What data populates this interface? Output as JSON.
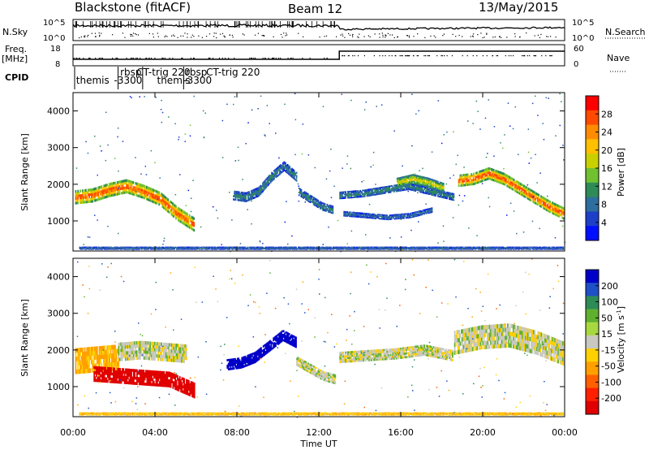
{
  "header": {
    "station": "Blackstone (fitACF)",
    "beam": "Beam 12",
    "date": "13/May/2015"
  },
  "top_panels": {
    "nsky_label": "N.Sky",
    "nsearch_label": "N.Search",
    "nsky_ticks": [
      "10^5",
      "10^0"
    ],
    "nsearch_ticks": [
      "10^5",
      "10^0"
    ],
    "freq_label": "Freq.",
    "freq_unit": "[MHz]",
    "freq_ticks": [
      "18",
      "8"
    ],
    "nave_label": "Nave",
    "nave_ticks": [
      "60",
      "0"
    ],
    "cpid_label": "CPID",
    "cpid_entries": [
      {
        "label": "themis",
        "start": 0.15
      },
      {
        "label": "rbsp",
        "start": 2.3
      },
      {
        "label": "-3300",
        "start": 2.0
      },
      {
        "label": "CT-trig 220",
        "start": 3.1
      },
      {
        "label": "themis",
        "start": 4.1
      },
      {
        "label": "-3300",
        "start": 5.4
      },
      {
        "label": "rbsp",
        "start": 5.5
      },
      {
        "label": "CT-trig 220",
        "start": 6.5
      }
    ],
    "cpid_boundaries": [
      2.2,
      3.4,
      5.4
    ]
  },
  "colorbars": {
    "power": {
      "label": "Power [dB]",
      "ticks": [
        "28",
        "24",
        "20",
        "16",
        "12",
        "8",
        "4"
      ],
      "colors": [
        "#ff0000",
        "#ff4a00",
        "#ff8c00",
        "#ffc000",
        "#c8d000",
        "#70c030",
        "#2e8b57",
        "#2e6e9e",
        "#1e40c8",
        "#0010ff"
      ]
    },
    "velocity": {
      "label": "Velocity [m s",
      "label_sup": "-1",
      "label_end": "]",
      "ticks": [
        "200",
        "100",
        "50",
        "15",
        "-15",
        "-50",
        "-100",
        "-200"
      ],
      "colors": [
        "#0000c8",
        "#1e50c8",
        "#2e8b57",
        "#60b030",
        "#a8d840",
        "#c8c8c0",
        "#ffd000",
        "#ffa000",
        "#ff6000",
        "#ff2000",
        "#e00000"
      ]
    }
  },
  "panels": {
    "ylabel": "Slant Range [km]",
    "xlabel": "Time UT"
  },
  "chart_data": [
    {
      "type": "heatmap",
      "title": "Power",
      "ylabel": "Slant Range [km]",
      "xlabel": "",
      "xlim": [
        0,
        24
      ],
      "ylim": [
        180,
        4500
      ],
      "y_ticks": [
        1000,
        2000,
        3000,
        4000
      ],
      "x_ticks": [
        "00:00",
        "04:00",
        "08:00",
        "12:00",
        "16:00",
        "20:00",
        "00:00"
      ],
      "bands": [
        {
          "t0": 0.1,
          "t1": 5.9,
          "r_mid": [
            1650,
            1700,
            1850,
            1950,
            1800,
            1600,
            1200,
            900
          ],
          "width": 380,
          "power": 24
        },
        {
          "t0": 7.8,
          "t1": 10.9,
          "r_mid": [
            1700,
            1650,
            1800,
            2200,
            2500,
            2200
          ],
          "width": 260,
          "power": 8
        },
        {
          "t0": 11.0,
          "t1": 12.7,
          "r_mid": [
            1800,
            1600,
            1400,
            1300
          ],
          "width": 220,
          "power": 8
        },
        {
          "t0": 13.0,
          "t1": 18.6,
          "r_mid": [
            1700,
            1750,
            1850,
            1950,
            1800,
            1650
          ],
          "width": 200,
          "power": 8
        },
        {
          "t0": 13.2,
          "t1": 17.5,
          "r_mid": [
            1200,
            1150,
            1100,
            1150,
            1300
          ],
          "width": 140,
          "power": 6
        },
        {
          "t0": 15.8,
          "t1": 18.1,
          "r_mid": [
            2050,
            2150,
            2050,
            1900
          ],
          "width": 260,
          "power": 16
        },
        {
          "t0": 18.8,
          "t1": 23.95,
          "r_mid": [
            2100,
            2150,
            2300,
            2150,
            1900,
            1650,
            1400,
            1200
          ],
          "width": 330,
          "power": 24
        },
        {
          "t0": 0.3,
          "t1": 23.9,
          "r_mid": [
            260,
            260
          ],
          "width": 80,
          "power": 6
        }
      ]
    },
    {
      "type": "heatmap",
      "title": "Velocity",
      "ylabel": "Slant Range [km]",
      "xlabel": "Time UT",
      "xlim": [
        0,
        24
      ],
      "ylim": [
        180,
        4500
      ],
      "y_ticks": [
        1000,
        2000,
        3000,
        4000
      ],
      "x_ticks": [
        "00:00",
        "04:00",
        "08:00",
        "12:00",
        "16:00",
        "20:00",
        "00:00"
      ],
      "bands": [
        {
          "t0": 0.1,
          "t1": 2.2,
          "r_mid": [
            1700,
            1750,
            1800
          ],
          "width": 700,
          "velocity": -60
        },
        {
          "t0": 2.2,
          "t1": 5.5,
          "r_mid": [
            1950,
            2000,
            1950,
            1900
          ],
          "width": 500,
          "velocity": 0
        },
        {
          "t0": 1.0,
          "t1": 5.9,
          "r_mid": [
            1350,
            1300,
            1250,
            1200,
            900
          ],
          "width": 420,
          "velocity": -200
        },
        {
          "t0": 7.5,
          "t1": 10.9,
          "r_mid": [
            1600,
            1650,
            1800,
            2100,
            2400,
            2200
          ],
          "width": 300,
          "velocity": 200
        },
        {
          "t0": 10.9,
          "t1": 12.8,
          "r_mid": [
            1700,
            1500,
            1300,
            1200
          ],
          "width": 260,
          "velocity": 0
        },
        {
          "t0": 13.0,
          "t1": 18.5,
          "r_mid": [
            1800,
            1850,
            1900,
            2000,
            1850
          ],
          "width": 300,
          "velocity": 0
        },
        {
          "t0": 18.6,
          "t1": 23.95,
          "r_mid": [
            2200,
            2350,
            2400,
            2200,
            1900
          ],
          "width": 650,
          "velocity": 0
        },
        {
          "t0": 0.3,
          "t1": 23.9,
          "r_mid": [
            260,
            260
          ],
          "width": 80,
          "velocity": -40
        }
      ]
    }
  ]
}
